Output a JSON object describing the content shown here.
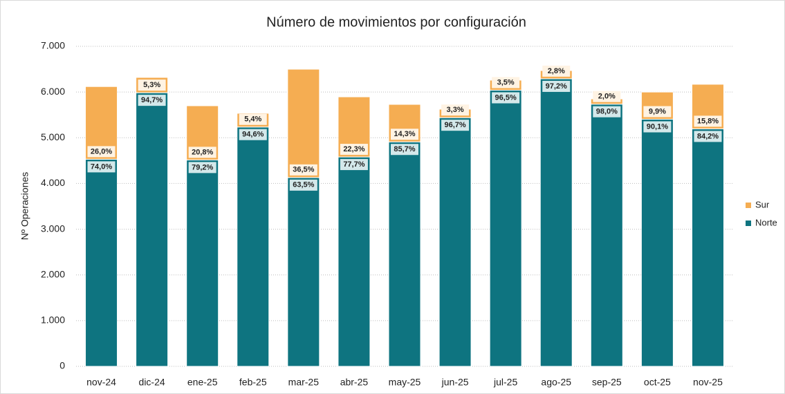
{
  "chart_data": {
    "type": "stacked_bar",
    "title": "Número de movimientos por configuración",
    "y_label": "Nº Operaciones",
    "categories": [
      "nov-24",
      "dic-24",
      "ene-25",
      "feb-25",
      "mar-25",
      "abr-25",
      "may-25",
      "jun-25",
      "jul-25",
      "ago-25",
      "sep-25",
      "oct-25",
      "nov-25"
    ],
    "series": [
      {
        "name": "Norte",
        "color": "#0e7480",
        "values": [
          4530,
          5985,
          4515,
          5235,
          4130,
          4580,
          4910,
          5440,
          6040,
          6290,
          5735,
          5405,
          5195
        ],
        "labels": [
          "74,0%",
          "94,7%",
          "79,2%",
          "94,6%",
          "63,5%",
          "77,7%",
          "85,7%",
          "96,7%",
          "96,5%",
          "97,2%",
          "98,0%",
          "90,1%",
          "84,2%"
        ]
      },
      {
        "name": "Sur",
        "color": "#f5ad52",
        "values": [
          1590,
          335,
          1185,
          300,
          2370,
          1315,
          820,
          185,
          220,
          180,
          115,
          595,
          975
        ],
        "labels": [
          "26,0%",
          "5,3%",
          "20,8%",
          "5,4%",
          "36,5%",
          "22,3%",
          "14,3%",
          "3,3%",
          "3,5%",
          "2,8%",
          "2,0%",
          "9,9%",
          "15,8%"
        ]
      }
    ],
    "ylim": [
      0,
      7000
    ],
    "yticks": [
      0,
      {
        "value": 1000,
        "label": "1.000"
      },
      {
        "value": 2000,
        "label": "2.000"
      },
      {
        "value": 3000,
        "label": "3.000"
      },
      {
        "value": 4000,
        "label": "4.000"
      },
      {
        "value": 5000,
        "label": "5.000"
      },
      {
        "value": 6000,
        "label": "6.000"
      },
      {
        "value": 7000,
        "label": "7.000"
      }
    ],
    "grid": true,
    "legend": "right"
  }
}
